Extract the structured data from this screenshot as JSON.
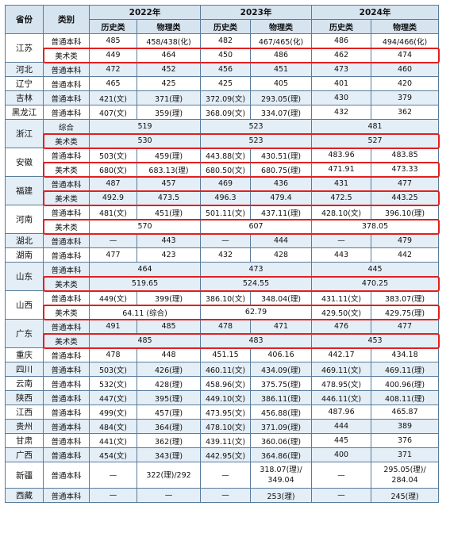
{
  "header": {
    "province": "省份",
    "category": "类别",
    "years": [
      "2022年",
      "2023年",
      "2024年"
    ],
    "history": "历史类",
    "physics": "物理类"
  },
  "rows": [
    {
      "prov": "江苏",
      "cat": "普通本科",
      "v": [
        "485",
        "458/438(化)",
        "482",
        "467/465(化)",
        "486",
        "494/466(化)"
      ]
    },
    {
      "prov": "",
      "cat": "美术类",
      "v": [
        "449",
        "464",
        "450",
        "486",
        "462",
        "474"
      ]
    },
    {
      "prov": "河北",
      "cat": "普通本科",
      "v": [
        "472",
        "452",
        "456",
        "451",
        "473",
        "460"
      ]
    },
    {
      "prov": "辽宁",
      "cat": "普通本科",
      "v": [
        "465",
        "425",
        "425",
        "405",
        "401",
        "420"
      ]
    },
    {
      "prov": "吉林",
      "cat": "普通本科",
      "v": [
        "421(文)",
        "371(理)",
        "372.09(文)",
        "293.05(理)",
        "430",
        "379"
      ]
    },
    {
      "prov": "黑龙江",
      "cat": "普通本科",
      "v": [
        "407(文)",
        "359(理)",
        "368.09(文)",
        "334.07(理)",
        "432",
        "362"
      ]
    },
    {
      "prov": "浙江",
      "cat": "综合",
      "merged": [
        "519",
        "523",
        "481"
      ]
    },
    {
      "prov": "",
      "cat": "美术类",
      "merged": [
        "530",
        "523",
        "527"
      ]
    },
    {
      "prov": "安徽",
      "cat": "普通本科",
      "v": [
        "503(文)",
        "459(理)",
        "443.88(文)",
        "430.51(理)",
        "483.96",
        "483.85"
      ]
    },
    {
      "prov": "",
      "cat": "美术类",
      "v": [
        "680(文)",
        "683.13(理)",
        "680.50(文)",
        "680.75(理)",
        "471.91",
        "473.33"
      ]
    },
    {
      "prov": "福建",
      "cat": "普通本科",
      "v": [
        "487",
        "457",
        "469",
        "436",
        "431",
        "477"
      ]
    },
    {
      "prov": "",
      "cat": "美术类",
      "v": [
        "492.9",
        "473.5",
        "496.3",
        "479.4",
        "472.5",
        "443.25"
      ]
    },
    {
      "prov": "河南",
      "cat": "普通本科",
      "v": [
        "481(文)",
        "451(理)",
        "501.11(文)",
        "437.11(理)",
        "428.10(文)",
        "396.10(理)"
      ]
    },
    {
      "prov": "",
      "cat": "美术类",
      "merged": [
        "570",
        "607",
        "378.05"
      ]
    },
    {
      "prov": "湖北",
      "cat": "普通本科",
      "v": [
        "—",
        "443",
        "—",
        "444",
        "—",
        "479"
      ]
    },
    {
      "prov": "湖南",
      "cat": "普通本科",
      "v": [
        "477",
        "423",
        "432",
        "428",
        "443",
        "442"
      ]
    },
    {
      "prov": "山东",
      "cat": "普通本科",
      "merged": [
        "464",
        "473",
        "445"
      ]
    },
    {
      "prov": "",
      "cat": "美术类",
      "merged": [
        "519.65",
        "524.55",
        "470.25"
      ]
    },
    {
      "prov": "山西",
      "cat": "普通本科",
      "v": [
        "449(文)",
        "399(理)",
        "386.10(文)",
        "348.04(理)",
        "431.11(文)",
        "383.07(理)"
      ]
    },
    {
      "prov": "",
      "cat": "美术类",
      "special": [
        "64.11 (综合)",
        "62.79",
        "429.50(文)",
        "429.75(理)"
      ]
    },
    {
      "prov": "广东",
      "cat": "普通本科",
      "v": [
        "491",
        "485",
        "478",
        "471",
        "476",
        "477"
      ]
    },
    {
      "prov": "",
      "cat": "美术类",
      "merged": [
        "485",
        "483",
        "453"
      ]
    },
    {
      "prov": "重庆",
      "cat": "普通本科",
      "v": [
        "478",
        "448",
        "451.15",
        "406.16",
        "442.17",
        "434.18"
      ]
    },
    {
      "prov": "四川",
      "cat": "普通本科",
      "v": [
        "503(文)",
        "426(理)",
        "460.11(文)",
        "434.09(理)",
        "469.11(文)",
        "469.11(理)"
      ]
    },
    {
      "prov": "云南",
      "cat": "普通本科",
      "v": [
        "532(文)",
        "428(理)",
        "458.96(文)",
        "375.75(理)",
        "478.95(文)",
        "400.96(理)"
      ]
    },
    {
      "prov": "陕西",
      "cat": "普通本科",
      "v": [
        "447(文)",
        "395(理)",
        "449.10(文)",
        "386.11(理)",
        "446.11(文)",
        "408.11(理)"
      ]
    },
    {
      "prov": "江西",
      "cat": "普通本科",
      "v": [
        "499(文)",
        "457(理)",
        "473.95(文)",
        "456.88(理)",
        "487.96",
        "465.87"
      ]
    },
    {
      "prov": "贵州",
      "cat": "普通本科",
      "v": [
        "484(文)",
        "364(理)",
        "478.10(文)",
        "371.09(理)",
        "444",
        "389"
      ]
    },
    {
      "prov": "甘肃",
      "cat": "普通本科",
      "v": [
        "441(文)",
        "362(理)",
        "439.11(文)",
        "360.06(理)",
        "445",
        "376"
      ]
    },
    {
      "prov": "广西",
      "cat": "普通本科",
      "v": [
        "454(文)",
        "343(理)",
        "442.95(文)",
        "364.86(理)",
        "400",
        "371"
      ]
    },
    {
      "prov": "新疆",
      "cat": "普通本科",
      "v": [
        "—",
        "322(理)/292",
        "—",
        "318.07(理)/\n349.04",
        "—",
        "295.05(理)/\n284.04"
      ],
      "tall": true
    },
    {
      "prov": "西藏",
      "cat": "普通本科",
      "v": [
        "—",
        "—",
        "—",
        "253(理)",
        "—",
        "245(理)"
      ]
    }
  ]
}
